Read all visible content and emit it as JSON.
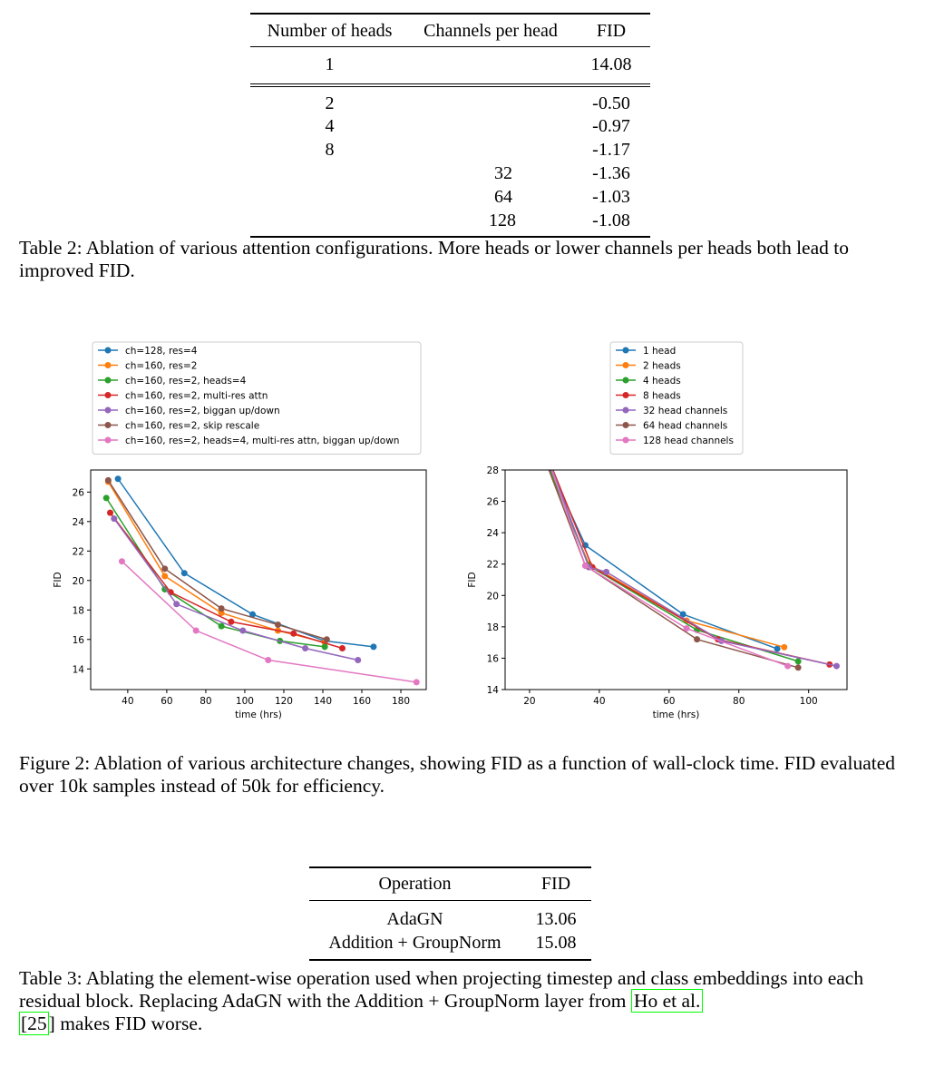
{
  "table2": {
    "headers": [
      "Number of heads",
      "Channels per head",
      "FID"
    ],
    "baseline": {
      "heads": "1",
      "channels": "",
      "fid": "14.08"
    },
    "rows": [
      {
        "heads": "2",
        "channels": "",
        "fid": "-0.50"
      },
      {
        "heads": "4",
        "channels": "",
        "fid": "-0.97"
      },
      {
        "heads": "8",
        "channels": "",
        "fid": "-1.17"
      },
      {
        "heads": "",
        "channels": "32",
        "fid": "-1.36"
      },
      {
        "heads": "",
        "channels": "64",
        "fid": "-1.03"
      },
      {
        "heads": "",
        "channels": "128",
        "fid": "-1.08"
      }
    ],
    "caption": "Table 2: Ablation of various attention configurations. More heads or lower channels per heads both lead to improved FID."
  },
  "figure2": {
    "caption": "Figure 2:  Ablation of various architecture changes, showing FID as a function of wall-clock time. FID evaluated over 10k samples instead of 50k for efficiency."
  },
  "chart_data": [
    {
      "type": "line",
      "xlabel": "time (hrs)",
      "ylabel": "FID",
      "xlim": [
        21,
        193
      ],
      "ylim": [
        12.6,
        27.5
      ],
      "xticks": [
        40,
        60,
        80,
        100,
        120,
        140,
        160,
        180
      ],
      "yticks": [
        14,
        16,
        18,
        20,
        22,
        24,
        26
      ],
      "legend_position": "above",
      "series": [
        {
          "name": "ch=128, res=4",
          "color": "#1f77b4",
          "x": [
            35,
            69,
            104,
            141,
            166
          ],
          "y": [
            26.9,
            20.5,
            17.7,
            15.9,
            15.5
          ]
        },
        {
          "name": "ch=160, res=2",
          "color": "#ff7f0e",
          "x": [
            30,
            59,
            88,
            117,
            141
          ],
          "y": [
            26.7,
            20.3,
            17.8,
            16.6,
            15.8
          ]
        },
        {
          "name": "ch=160, res=2, heads=4",
          "color": "#2ca02c",
          "x": [
            29,
            59,
            88,
            118,
            141
          ],
          "y": [
            25.6,
            19.4,
            16.9,
            15.9,
            15.5
          ]
        },
        {
          "name": "ch=160, res=2, multi-res attn",
          "color": "#d62728",
          "x": [
            31,
            62,
            93,
            125,
            150
          ],
          "y": [
            24.6,
            19.2,
            17.2,
            16.4,
            15.4
          ]
        },
        {
          "name": "ch=160, res=2, biggan up/down",
          "color": "#9467bd",
          "x": [
            33,
            65,
            99,
            131,
            158
          ],
          "y": [
            24.2,
            18.4,
            16.6,
            15.4,
            14.6
          ]
        },
        {
          "name": "ch=160, res=2, skip rescale",
          "color": "#8c564b",
          "x": [
            30,
            59,
            88,
            117,
            142
          ],
          "y": [
            26.8,
            20.8,
            18.1,
            17.0,
            16.0
          ]
        },
        {
          "name": "ch=160, res=2, heads=4, multi-res attn, biggan up/down",
          "color": "#e377c2",
          "x": [
            37,
            75,
            112,
            188
          ],
          "y": [
            21.3,
            16.6,
            14.6,
            13.1
          ]
        }
      ]
    },
    {
      "type": "line",
      "xlabel": "time (hrs)",
      "ylabel": "FID",
      "xlim": [
        13,
        111
      ],
      "ylim": [
        14,
        28
      ],
      "xticks": [
        20,
        40,
        60,
        80,
        100
      ],
      "yticks": [
        14,
        16,
        18,
        20,
        22,
        24,
        26,
        28
      ],
      "legend_position": "above",
      "series": [
        {
          "name": "1 head",
          "color": "#1f77b4",
          "x": [
            23,
            36,
            64,
            91
          ],
          "y": [
            29.5,
            23.2,
            18.8,
            16.6
          ]
        },
        {
          "name": "2 heads",
          "color": "#ff7f0e",
          "x": [
            23,
            37,
            65,
            93
          ],
          "y": [
            29.5,
            22.0,
            18.4,
            16.7
          ]
        },
        {
          "name": "4 heads",
          "color": "#2ca02c",
          "x": [
            23,
            37,
            68,
            97
          ],
          "y": [
            29.5,
            21.9,
            17.8,
            15.8
          ]
        },
        {
          "name": "8 heads",
          "color": "#d62728",
          "x": [
            24,
            38,
            74,
            106
          ],
          "y": [
            29.5,
            21.8,
            17.2,
            15.6
          ]
        },
        {
          "name": "32 head channels",
          "color": "#9467bd",
          "x": [
            24,
            37,
            42,
            75,
            108
          ],
          "y": [
            29.5,
            21.8,
            21.5,
            17.1,
            15.5
          ]
        },
        {
          "name": "64 head channels",
          "color": "#8c564b",
          "x": [
            23,
            36,
            68,
            97
          ],
          "y": [
            29.5,
            21.9,
            17.2,
            15.4
          ]
        },
        {
          "name": "128 head channels",
          "color": "#e377c2",
          "x": [
            24,
            36,
            65,
            94
          ],
          "y": [
            29.5,
            21.9,
            17.9,
            15.5
          ]
        }
      ]
    }
  ],
  "table3": {
    "headers": [
      "Operation",
      "FID"
    ],
    "rows": [
      {
        "op": "AdaGN",
        "fid": "13.06"
      },
      {
        "op": "Addition + GroupNorm",
        "fid": "15.08"
      }
    ],
    "caption_pre": "Table 3: Ablating the element-wise operation used when projecting timestep and class embeddings into each residual block. Replacing AdaGN with the Addition + GroupNorm layer from ",
    "cite_text": "Ho et al.",
    "cite_num": "25",
    "caption_post": "] makes FID worse."
  }
}
